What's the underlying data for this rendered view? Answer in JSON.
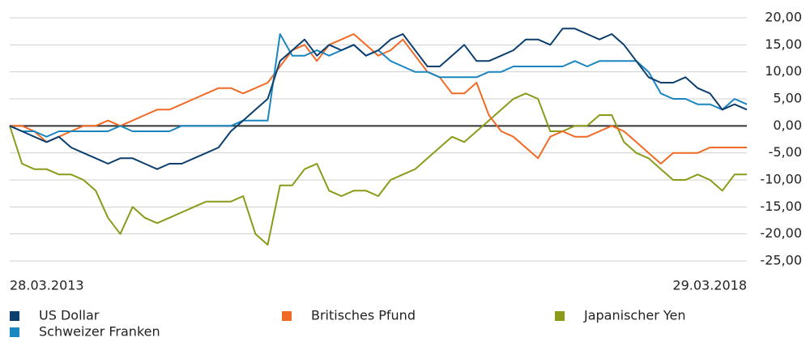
{
  "chart_data": {
    "type": "line",
    "categories": [
      "28.03.2013",
      null,
      null,
      null,
      null,
      null,
      null,
      null,
      null,
      null,
      null,
      null,
      null,
      null,
      null,
      null,
      null,
      null,
      null,
      null,
      null,
      null,
      null,
      null,
      null,
      null,
      null,
      null,
      null,
      null,
      null,
      null,
      null,
      null,
      null,
      null,
      null,
      null,
      null,
      null,
      null,
      null,
      null,
      null,
      null,
      null,
      null,
      null,
      null,
      null,
      null,
      null,
      null,
      null,
      null,
      null,
      null,
      null,
      null,
      null,
      "29.03.2018"
    ],
    "series": [
      {
        "name": "US Dollar",
        "color": "#0d3f6e",
        "values": [
          0,
          -1,
          -2,
          -3,
          -2,
          -4,
          -5,
          -6,
          -7,
          -6,
          -6,
          -7,
          -8,
          -7,
          -7,
          -6,
          -5,
          -4,
          -1,
          1,
          3,
          5,
          12,
          14,
          16,
          13,
          15,
          14,
          15,
          13,
          14,
          16,
          17,
          14,
          11,
          11,
          13,
          15,
          12,
          12,
          13,
          14,
          16,
          16,
          15,
          18,
          18,
          17,
          16,
          17,
          15,
          12,
          9,
          8,
          8,
          9,
          7,
          6,
          3,
          4,
          3
        ]
      },
      {
        "name": "Britisches Pfund",
        "color": "#f06a25",
        "values": [
          0,
          0,
          -1,
          -3,
          -2,
          -1,
          0,
          0,
          1,
          0,
          1,
          2,
          3,
          3,
          4,
          5,
          6,
          7,
          7,
          6,
          7,
          8,
          11,
          14,
          15,
          12,
          15,
          16,
          17,
          15,
          13,
          14,
          16,
          13,
          10,
          9,
          6,
          6,
          8,
          2,
          -1,
          -2,
          -4,
          -6,
          -2,
          -1,
          -2,
          -2,
          -1,
          0,
          -1,
          -3,
          -5,
          -7,
          -5,
          -5,
          -5,
          -4,
          -4,
          -4,
          -4
        ]
      },
      {
        "name": "Japanischer Yen",
        "color": "#8c9a1a",
        "values": [
          0,
          -7,
          -8,
          -8,
          -9,
          -9,
          -10,
          -12,
          -17,
          -20,
          -15,
          -17,
          -18,
          -17,
          -16,
          -15,
          -14,
          -14,
          -14,
          -13,
          -20,
          -22,
          -11,
          -11,
          -8,
          -7,
          -12,
          -13,
          -12,
          -12,
          -13,
          -10,
          -9,
          -8,
          -6,
          -4,
          -2,
          -3,
          -1,
          1,
          3,
          5,
          6,
          5,
          -1,
          -1,
          0,
          0,
          2,
          2,
          -3,
          -5,
          -6,
          -8,
          -10,
          -10,
          -9,
          -10,
          -12,
          -9,
          -9
        ]
      },
      {
        "name": "Schweizer Franken",
        "color": "#1a86c0",
        "values": [
          0,
          -1,
          -1,
          -2,
          -1,
          -1,
          -1,
          -1,
          -1,
          0,
          -1,
          -1,
          -1,
          -1,
          0,
          0,
          0,
          0,
          0,
          1,
          1,
          1,
          17,
          13,
          13,
          14,
          13,
          14,
          15,
          13,
          14,
          12,
          11,
          10,
          10,
          9,
          9,
          9,
          9,
          10,
          10,
          11,
          11,
          11,
          11,
          11,
          12,
          11,
          12,
          12,
          12,
          12,
          10,
          6,
          5,
          5,
          4,
          4,
          3,
          5,
          4
        ]
      }
    ],
    "ylim": [
      -25,
      20
    ],
    "yticks": [
      {
        "value": 20,
        "label": "20,00"
      },
      {
        "value": 15,
        "label": "15,00"
      },
      {
        "value": 10,
        "label": "10,00"
      },
      {
        "value": 5,
        "label": "5,00"
      },
      {
        "value": 0,
        "label": "0,00"
      },
      {
        "value": -5,
        "label": "-5,00"
      },
      {
        "value": -10,
        "label": "-10,00"
      },
      {
        "value": -15,
        "label": "-15,00"
      },
      {
        "value": -20,
        "label": "-20,00"
      },
      {
        "value": -25,
        "label": "-25,00"
      }
    ],
    "grid": true
  }
}
